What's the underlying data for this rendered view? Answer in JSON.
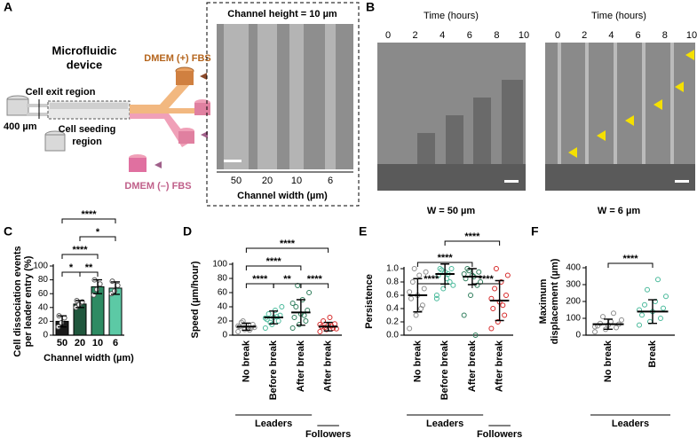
{
  "panel_labels": [
    "A",
    "B",
    "C",
    "D",
    "E",
    "F"
  ],
  "panel_a": {
    "title": [
      "Microfluidic",
      "device"
    ],
    "medium_plus": "DMEM (+) FBS",
    "exit": "Cell exit region",
    "spacing": "400 µm",
    "seeding": [
      "Cell seeding",
      "region"
    ],
    "medium_minus": "DMEM (–) FBS",
    "inset_title": "Channel height = 10 µm",
    "widths": [
      "50",
      "20",
      "10",
      "6"
    ],
    "inset_xlabel": "Channel width (µm)"
  },
  "panel_b": {
    "time_label": "Time (hours)",
    "time_ticks": [
      0,
      2,
      4,
      6,
      8,
      10
    ],
    "captions": [
      "W = 50 µm",
      "W = 6 µm"
    ]
  },
  "chart_data": [
    {
      "type": "bar",
      "categories": [
        "50",
        "20",
        "10",
        "6"
      ],
      "values": [
        20,
        45,
        70,
        68
      ],
      "errors": [
        8,
        5,
        10,
        9
      ],
      "points": [
        [
          12,
          18,
          25,
          28
        ],
        [
          40,
          44,
          48,
          50
        ],
        [
          58,
          66,
          74,
          80
        ],
        [
          60,
          64,
          72,
          78
        ]
      ],
      "colors": [
        "#1a1a1a",
        "#20573d",
        "#2e8b63",
        "#5cc9a5"
      ],
      "ylim": [
        0,
        100
      ],
      "yticks": [
        0,
        20,
        40,
        60,
        80,
        100
      ],
      "ylabel": [
        "Cell dissociation events",
        "per leader entry (%)"
      ],
      "xlabel": "Channel width (µm)",
      "annotations": [
        {
          "text": "*",
          "pair": [
            0,
            1
          ]
        },
        {
          "text": "**",
          "pair": [
            1,
            2
          ]
        },
        {
          "text": "****",
          "pair": [
            0,
            2
          ]
        },
        {
          "text": "*",
          "pair": [
            1,
            3
          ]
        },
        {
          "text": "****",
          "pair": [
            0,
            3
          ]
        }
      ]
    },
    {
      "type": "dotplot",
      "categories": [
        "No break",
        "Before break",
        "After break",
        "After break"
      ],
      "values": [
        12,
        25,
        32,
        12
      ],
      "errors": [
        5,
        9,
        18,
        6
      ],
      "points": [
        [
          5,
          8,
          10,
          12,
          14,
          15,
          18,
          9,
          11,
          20,
          7,
          13
        ],
        [
          10,
          15,
          20,
          22,
          25,
          28,
          30,
          35,
          40,
          18,
          26,
          24
        ],
        [
          10,
          15,
          20,
          25,
          30,
          35,
          40,
          50,
          60,
          70,
          28,
          45
        ],
        [
          5,
          8,
          10,
          12,
          14,
          16,
          20,
          25,
          9,
          11,
          13,
          15
        ]
      ],
      "colors": [
        "#8c8c8c",
        "#48b99a",
        "#2e7d5b",
        "#d62828"
      ],
      "ylim": [
        0,
        100
      ],
      "yticks": [
        0,
        20,
        40,
        60,
        80,
        100
      ],
      "ylabel": [
        "Speed (µm/hour)"
      ],
      "groups": [
        {
          "label": "Leaders",
          "span": [
            0,
            2
          ]
        },
        {
          "label": "Followers",
          "span": [
            3,
            3
          ]
        }
      ],
      "annotations": [
        {
          "text": "****",
          "pair": [
            0,
            1
          ]
        },
        {
          "text": "****",
          "pair": [
            2,
            3
          ]
        },
        {
          "text": "**",
          "pair": [
            1,
            2
          ]
        },
        {
          "text": "****",
          "pair": [
            0,
            2
          ]
        },
        {
          "text": "****",
          "pair": [
            0,
            3
          ]
        }
      ]
    },
    {
      "type": "dotplot",
      "categories": [
        "No break",
        "Before break",
        "After break",
        "After break"
      ],
      "values": [
        0.6,
        0.92,
        0.88,
        0.52
      ],
      "errors": [
        0.25,
        0.15,
        0.12,
        0.3
      ],
      "points": [
        [
          0.1,
          0.3,
          0.45,
          0.55,
          0.6,
          0.7,
          0.8,
          0.9,
          0.95,
          1.0,
          0.4,
          0.65
        ],
        [
          0.55,
          0.7,
          0.8,
          0.9,
          0.95,
          1.0,
          1.0,
          0.85,
          0.75,
          0.98,
          0.92,
          0.6
        ],
        [
          0.3,
          0.6,
          0.75,
          0.85,
          0.9,
          0.95,
          1.0,
          0.88,
          0.8,
          0.97,
          0.0,
          0.92
        ],
        [
          0.1,
          0.2,
          0.3,
          0.4,
          0.5,
          0.6,
          0.7,
          0.8,
          0.9,
          1.0,
          0.45,
          0.55
        ]
      ],
      "colors": [
        "#8c8c8c",
        "#48b99a",
        "#2e7d5b",
        "#d62828"
      ],
      "ylim": [
        0,
        1
      ],
      "yticks": [
        {
          "value": 0,
          "label": "0.0"
        },
        0.2,
        0.4,
        0.6,
        0.8,
        {
          "value": 1,
          "label": "1.0"
        }
      ],
      "ylabel": [
        "Persistence"
      ],
      "groups": [
        {
          "label": "Leaders",
          "span": [
            0,
            2
          ]
        },
        {
          "label": "Followers",
          "span": [
            3,
            3
          ]
        }
      ],
      "annotations": [
        {
          "text": "****",
          "pair": [
            0,
            1
          ]
        },
        {
          "text": "****",
          "pair": [
            2,
            3
          ]
        },
        {
          "text": "****",
          "pair": [
            0,
            2
          ]
        },
        {
          "text": "****",
          "pair": [
            1,
            3
          ]
        }
      ]
    },
    {
      "type": "dotplot",
      "categories": [
        "No break",
        "Break"
      ],
      "values": [
        65,
        140
      ],
      "errors": [
        30,
        70
      ],
      "points": [
        [
          20,
          35,
          45,
          55,
          60,
          65,
          70,
          80,
          90,
          110,
          130,
          50
        ],
        [
          60,
          80,
          100,
          120,
          140,
          160,
          180,
          200,
          230,
          270,
          330,
          150
        ]
      ],
      "colors": [
        "#8c8c8c",
        "#48b99a"
      ],
      "ylim": [
        0,
        400
      ],
      "yticks": [
        0,
        100,
        200,
        300,
        400
      ],
      "ylabel": [
        "Maximum",
        "displacement (µm)"
      ],
      "groups": [
        {
          "label": "Leaders",
          "span": [
            0,
            1
          ]
        }
      ],
      "annotations": [
        {
          "text": "****",
          "pair": [
            0,
            1
          ]
        }
      ]
    }
  ]
}
